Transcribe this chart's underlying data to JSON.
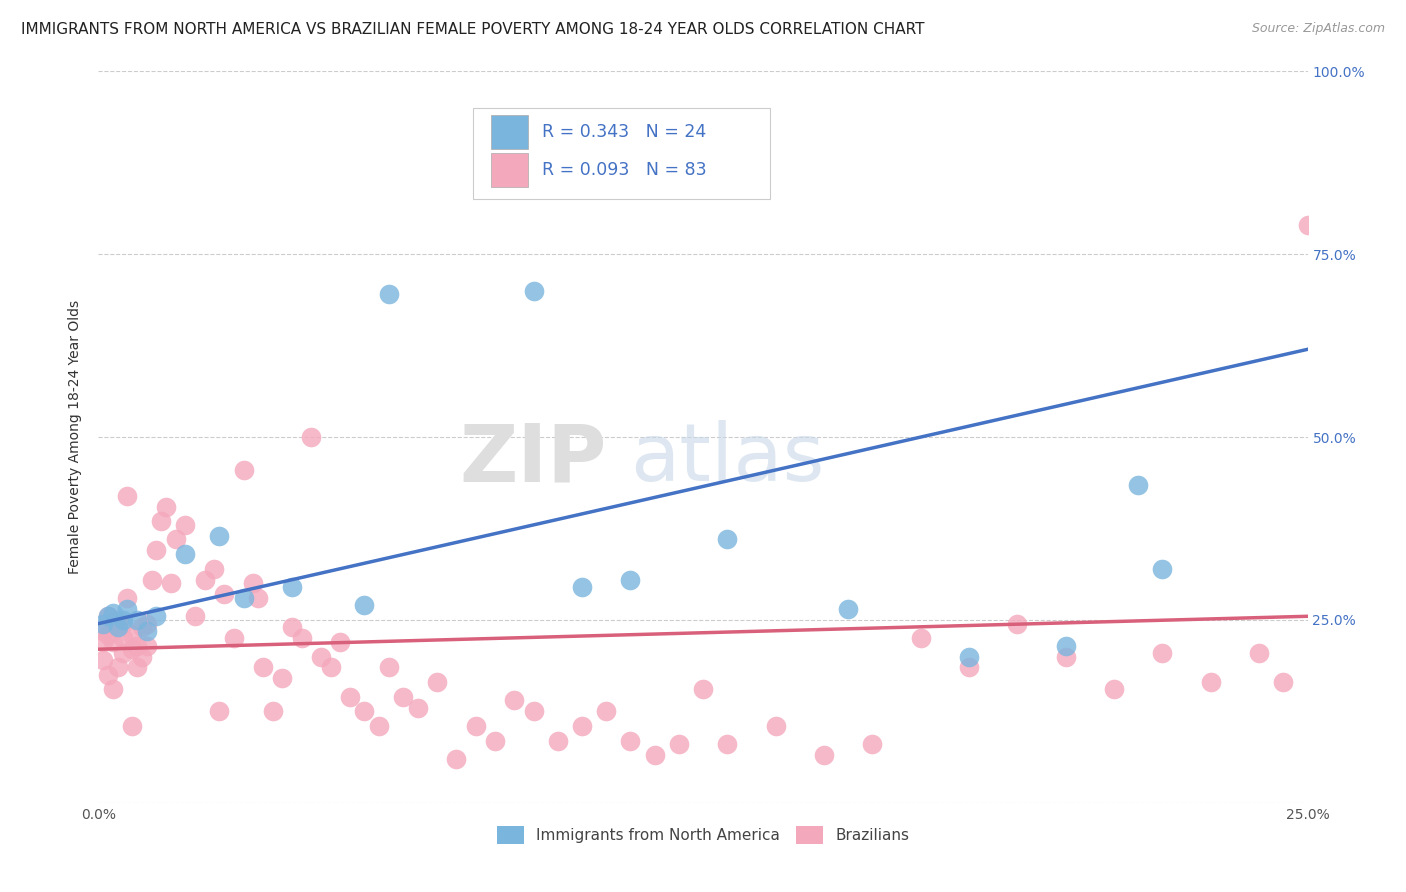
{
  "title": "IMMIGRANTS FROM NORTH AMERICA VS BRAZILIAN FEMALE POVERTY AMONG 18-24 YEAR OLDS CORRELATION CHART",
  "source": "Source: ZipAtlas.com",
  "ylabel": "Female Poverty Among 18-24 Year Olds",
  "xlim": [
    0.0,
    0.25
  ],
  "ylim": [
    0.0,
    1.0
  ],
  "series1_name": "Immigrants from North America",
  "series1_color": "#7ab5de",
  "series1_R": "0.343",
  "series1_N": "24",
  "series1_x": [
    0.001,
    0.002,
    0.003,
    0.004,
    0.005,
    0.006,
    0.008,
    0.01,
    0.012,
    0.018,
    0.025,
    0.03,
    0.04,
    0.055,
    0.06,
    0.09,
    0.1,
    0.11,
    0.13,
    0.155,
    0.18,
    0.2,
    0.215,
    0.22
  ],
  "series1_y": [
    0.245,
    0.255,
    0.26,
    0.24,
    0.25,
    0.265,
    0.25,
    0.235,
    0.255,
    0.34,
    0.365,
    0.28,
    0.295,
    0.27,
    0.695,
    0.7,
    0.295,
    0.305,
    0.36,
    0.265,
    0.2,
    0.215,
    0.435,
    0.32
  ],
  "series2_name": "Brazilians",
  "series2_color": "#f4a8bc",
  "series2_R": "0.093",
  "series2_N": "83",
  "series2_x": [
    0.001,
    0.001,
    0.001,
    0.002,
    0.002,
    0.002,
    0.003,
    0.003,
    0.003,
    0.004,
    0.004,
    0.005,
    0.005,
    0.005,
    0.006,
    0.006,
    0.007,
    0.007,
    0.007,
    0.008,
    0.008,
    0.009,
    0.009,
    0.01,
    0.01,
    0.011,
    0.012,
    0.013,
    0.014,
    0.015,
    0.016,
    0.018,
    0.02,
    0.022,
    0.024,
    0.025,
    0.026,
    0.028,
    0.03,
    0.032,
    0.033,
    0.034,
    0.036,
    0.038,
    0.04,
    0.042,
    0.044,
    0.046,
    0.048,
    0.05,
    0.052,
    0.055,
    0.058,
    0.06,
    0.063,
    0.066,
    0.07,
    0.074,
    0.078,
    0.082,
    0.086,
    0.09,
    0.095,
    0.1,
    0.105,
    0.11,
    0.115,
    0.12,
    0.125,
    0.13,
    0.14,
    0.15,
    0.16,
    0.17,
    0.18,
    0.19,
    0.2,
    0.21,
    0.22,
    0.23,
    0.24,
    0.245,
    0.25
  ],
  "series2_y": [
    0.235,
    0.22,
    0.195,
    0.255,
    0.23,
    0.175,
    0.245,
    0.22,
    0.155,
    0.25,
    0.185,
    0.245,
    0.225,
    0.205,
    0.42,
    0.28,
    0.21,
    0.23,
    0.105,
    0.215,
    0.185,
    0.24,
    0.2,
    0.245,
    0.215,
    0.305,
    0.345,
    0.385,
    0.405,
    0.3,
    0.36,
    0.38,
    0.255,
    0.305,
    0.32,
    0.125,
    0.285,
    0.225,
    0.455,
    0.3,
    0.28,
    0.185,
    0.125,
    0.17,
    0.24,
    0.225,
    0.5,
    0.2,
    0.185,
    0.22,
    0.145,
    0.125,
    0.105,
    0.185,
    0.145,
    0.13,
    0.165,
    0.06,
    0.105,
    0.085,
    0.14,
    0.125,
    0.085,
    0.105,
    0.125,
    0.085,
    0.065,
    0.08,
    0.155,
    0.08,
    0.105,
    0.065,
    0.08,
    0.225,
    0.185,
    0.245,
    0.2,
    0.155,
    0.205,
    0.165,
    0.205,
    0.165,
    0.79
  ],
  "line1_color": "#4472c4",
  "line2_color": "#d9607a",
  "background_color": "#ffffff",
  "grid_color": "#cccccc",
  "watermark_color": "#dedede",
  "title_fontsize": 11,
  "axis_label_fontsize": 10,
  "tick_fontsize": 10,
  "legend_fontsize": 11,
  "source_fontsize": 9,
  "line1_x0": 0.0,
  "line1_y0": 0.245,
  "line1_x1": 0.25,
  "line1_y1": 0.62,
  "line2_x0": 0.0,
  "line2_y0": 0.21,
  "line2_x1": 0.25,
  "line2_y1": 0.255
}
